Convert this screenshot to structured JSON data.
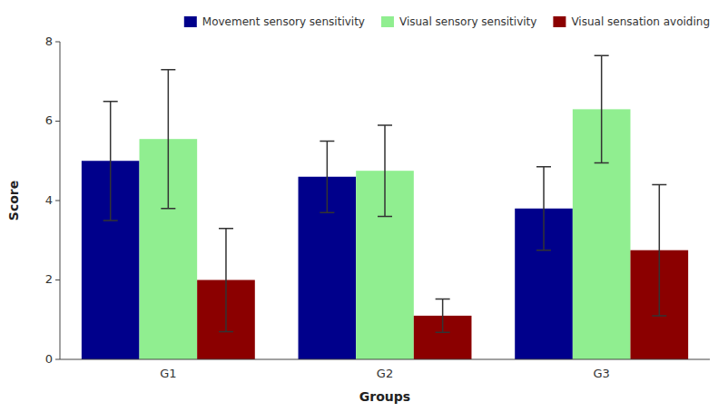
{
  "chart_data": {
    "type": "bar",
    "xlabel": "Groups",
    "ylabel": "Score",
    "categories": [
      "G1",
      "G2",
      "G3"
    ],
    "series": [
      {
        "name": "Movement sensory sensitivity",
        "color": "#00008B",
        "values": [
          5.0,
          4.6,
          3.8
        ],
        "errors": [
          1.5,
          0.9,
          1.05
        ]
      },
      {
        "name": "Visual sensory sensitivity",
        "color": "#90EE90",
        "values": [
          5.55,
          4.75,
          6.3
        ],
        "errors": [
          1.75,
          1.15,
          1.35
        ]
      },
      {
        "name": "Visual sensation avoiding",
        "color": "#8B0000",
        "values": [
          2.0,
          1.1,
          2.75
        ],
        "errors": [
          1.3,
          0.42,
          1.65
        ]
      }
    ],
    "ylim": [
      0,
      8
    ],
    "yticks": [
      0,
      2,
      4,
      6,
      8
    ],
    "grid": false,
    "legend": "upper right"
  }
}
